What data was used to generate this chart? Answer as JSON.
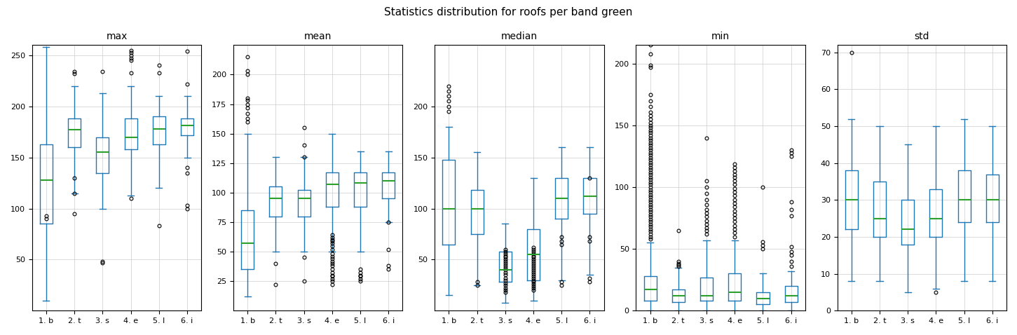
{
  "title": "Statistics distribution for roofs per band green",
  "subplots": [
    "max",
    "mean",
    "median",
    "min",
    "std"
  ],
  "categories": [
    "1. b",
    "2. t",
    "3. s",
    "4. e",
    "5. l",
    "6. i"
  ],
  "box_color": "#1f77b4",
  "median_color": "#2ca02c",
  "flier_marker": "o",
  "flier_color": "black",
  "max": {
    "ylim": [
      0,
      260
    ],
    "yticks": [
      50,
      100,
      150,
      200,
      250
    ],
    "boxes": [
      {
        "q1": 85,
        "median": 128,
        "q3": 163,
        "whislo": 10,
        "whishi": 258,
        "fliers": [
          90,
          93
        ]
      },
      {
        "q1": 160,
        "median": 177,
        "q3": 188,
        "whislo": 115,
        "whishi": 220,
        "fliers": [
          95,
          115,
          130,
          232,
          234
        ]
      },
      {
        "q1": 135,
        "median": 155,
        "q3": 170,
        "whislo": 100,
        "whishi": 213,
        "fliers": [
          47,
          48,
          234
        ]
      },
      {
        "q1": 158,
        "median": 170,
        "q3": 188,
        "whislo": 113,
        "whishi": 220,
        "fliers": [
          110,
          233,
          245,
          247,
          250,
          253,
          255
        ]
      },
      {
        "q1": 163,
        "median": 178,
        "q3": 190,
        "whislo": 120,
        "whishi": 210,
        "fliers": [
          83,
          233,
          240
        ]
      },
      {
        "q1": 172,
        "median": 181,
        "q3": 188,
        "whislo": 150,
        "whishi": 210,
        "fliers": [
          100,
          103,
          135,
          140,
          222,
          254
        ]
      }
    ]
  },
  "mean": {
    "ylim": [
      0,
      225
    ],
    "yticks": [
      25,
      50,
      75,
      100,
      125,
      150,
      175,
      200
    ],
    "boxes": [
      {
        "q1": 35,
        "median": 57,
        "q3": 85,
        "whislo": 12,
        "whishi": 150,
        "fliers": [
          160,
          163,
          167,
          172,
          175,
          178,
          180,
          200,
          203,
          215
        ]
      },
      {
        "q1": 80,
        "median": 95,
        "q3": 105,
        "whislo": 50,
        "whishi": 130,
        "fliers": [
          22,
          40
        ]
      },
      {
        "q1": 80,
        "median": 95,
        "q3": 102,
        "whislo": 50,
        "whishi": 130,
        "fliers": [
          25,
          45,
          130,
          140,
          155
        ]
      },
      {
        "q1": 88,
        "median": 107,
        "q3": 117,
        "whislo": 50,
        "whishi": 150,
        "fliers": [
          22,
          25,
          27,
          29,
          30,
          32,
          35,
          38,
          40,
          42,
          44,
          46,
          48,
          52,
          55,
          57,
          59,
          60,
          62,
          64
        ]
      },
      {
        "q1": 88,
        "median": 108,
        "q3": 117,
        "whislo": 50,
        "whishi": 135,
        "fliers": [
          25,
          27,
          29,
          30,
          32,
          35
        ]
      },
      {
        "q1": 95,
        "median": 110,
        "q3": 117,
        "whislo": 75,
        "whishi": 135,
        "fliers": [
          35,
          38,
          52,
          75
        ]
      }
    ]
  },
  "median": {
    "ylim": [
      0,
      260
    ],
    "yticks": [
      50,
      100,
      150,
      200
    ],
    "boxes": [
      {
        "q1": 65,
        "median": 100,
        "q3": 148,
        "whislo": 15,
        "whishi": 180,
        "fliers": [
          195,
          200,
          205,
          210,
          215,
          220
        ]
      },
      {
        "q1": 75,
        "median": 100,
        "q3": 118,
        "whislo": 25,
        "whishi": 155,
        "fliers": [
          25,
          28
        ]
      },
      {
        "q1": 28,
        "median": 40,
        "q3": 58,
        "whislo": 8,
        "whishi": 85,
        "fliers": [
          18,
          20,
          22,
          25,
          27,
          30,
          32,
          35,
          37,
          40,
          42,
          44,
          46,
          48,
          50,
          52,
          54,
          56,
          58,
          60
        ]
      },
      {
        "q1": 30,
        "median": 55,
        "q3": 80,
        "whislo": 10,
        "whishi": 130,
        "fliers": [
          20,
          22,
          24,
          26,
          28,
          30,
          32,
          34,
          36,
          38,
          40,
          42,
          44,
          46,
          48,
          50,
          52,
          54,
          56,
          58,
          60,
          62
        ]
      },
      {
        "q1": 90,
        "median": 110,
        "q3": 130,
        "whislo": 30,
        "whishi": 160,
        "fliers": [
          25,
          28,
          65,
          68,
          72
        ]
      },
      {
        "q1": 95,
        "median": 112,
        "q3": 130,
        "whislo": 35,
        "whishi": 160,
        "fliers": [
          28,
          32,
          68,
          72,
          130
        ]
      }
    ]
  },
  "min": {
    "ylim": [
      0,
      215
    ],
    "yticks": [
      0,
      50,
      100,
      150,
      200
    ],
    "boxes": [
      {
        "q1": 8,
        "median": 17,
        "q3": 28,
        "whislo": 0,
        "whishi": 55,
        "fliers": [
          58,
          60,
          62,
          64,
          66,
          68,
          70,
          72,
          74,
          76,
          78,
          80,
          82,
          84,
          86,
          88,
          90,
          92,
          94,
          96,
          98,
          100,
          102,
          104,
          106,
          108,
          110,
          112,
          114,
          116,
          118,
          120,
          122,
          124,
          126,
          128,
          130,
          132,
          134,
          136,
          138,
          140,
          142,
          144,
          146,
          148,
          150,
          152,
          155,
          158,
          161,
          165,
          170,
          175,
          197,
          199,
          208,
          215,
          218
        ]
      },
      {
        "q1": 7,
        "median": 12,
        "q3": 17,
        "whislo": 0,
        "whishi": 35,
        "fliers": [
          36,
          37,
          38,
          40,
          65
        ]
      },
      {
        "q1": 8,
        "median": 12,
        "q3": 27,
        "whislo": 0,
        "whishi": 57,
        "fliers": [
          62,
          65,
          67,
          70,
          73,
          76,
          79,
          82,
          86,
          90,
          95,
          100,
          105,
          140
        ]
      },
      {
        "q1": 8,
        "median": 15,
        "q3": 30,
        "whislo": 0,
        "whishi": 57,
        "fliers": [
          60,
          63,
          66,
          69,
          72,
          75,
          78,
          81,
          84,
          87,
          90,
          93,
          96,
          99,
          102,
          105,
          108,
          110,
          113,
          116,
          119
        ]
      },
      {
        "q1": 5,
        "median": 10,
        "q3": 15,
        "whislo": 0,
        "whishi": 30,
        "fliers": [
          50,
          53,
          56,
          100
        ]
      },
      {
        "q1": 7,
        "median": 12,
        "q3": 20,
        "whislo": 0,
        "whishi": 32,
        "fliers": [
          36,
          40,
          45,
          48,
          52,
          77,
          82,
          88,
          125,
          128,
          130
        ]
      }
    ]
  },
  "std": {
    "ylim": [
      0,
      72
    ],
    "yticks": [
      0,
      10,
      20,
      30,
      40,
      50,
      60,
      70
    ],
    "boxes": [
      {
        "q1": 22,
        "median": 30,
        "q3": 38,
        "whislo": 8,
        "whishi": 52,
        "fliers": [
          70
        ]
      },
      {
        "q1": 20,
        "median": 25,
        "q3": 35,
        "whislo": 8,
        "whishi": 50,
        "fliers": []
      },
      {
        "q1": 18,
        "median": 22,
        "q3": 30,
        "whislo": 5,
        "whishi": 45,
        "fliers": []
      },
      {
        "q1": 20,
        "median": 25,
        "q3": 33,
        "whislo": 6,
        "whishi": 50,
        "fliers": [
          5
        ]
      },
      {
        "q1": 24,
        "median": 30,
        "q3": 38,
        "whislo": 8,
        "whishi": 52,
        "fliers": []
      },
      {
        "q1": 24,
        "median": 30,
        "q3": 37,
        "whislo": 8,
        "whishi": 50,
        "fliers": []
      }
    ]
  }
}
